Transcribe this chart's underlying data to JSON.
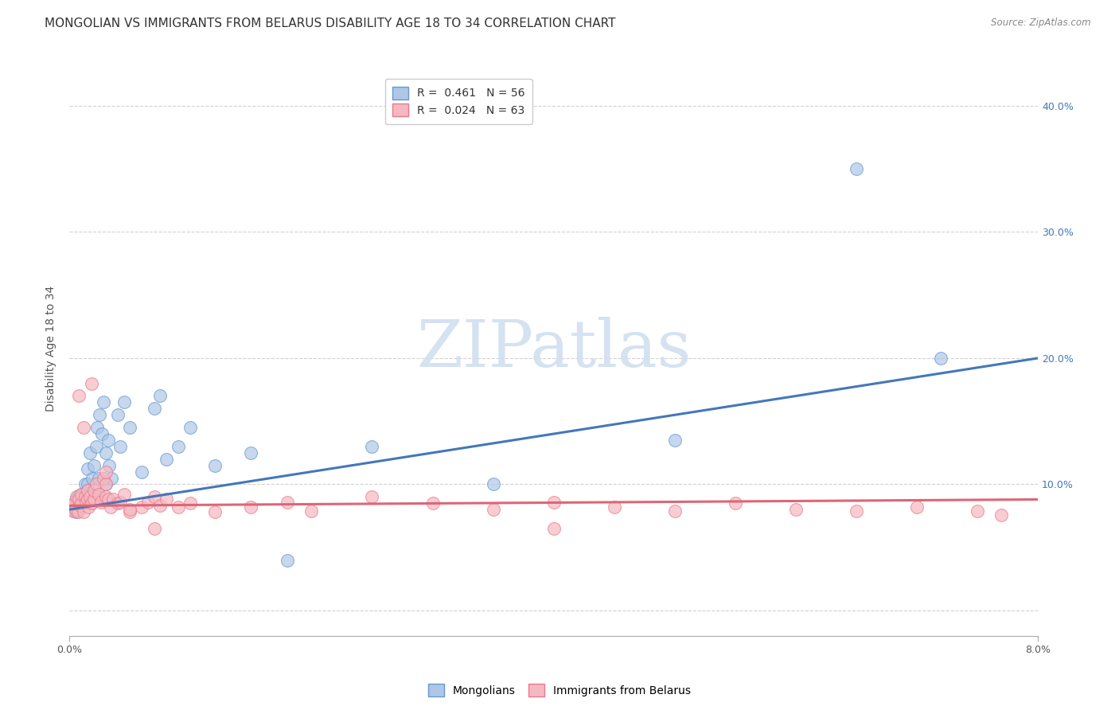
{
  "title": "MONGOLIAN VS IMMIGRANTS FROM BELARUS DISABILITY AGE 18 TO 34 CORRELATION CHART",
  "source": "Source: ZipAtlas.com",
  "ylabel": "Disability Age 18 to 34",
  "legend1_label": "R =  0.461   N = 56",
  "legend2_label": "R =  0.024   N = 63",
  "legend1_color_blue": "#aec6e8",
  "legend2_color_pink": "#f4b8c1",
  "blue_edge": "#6699cc",
  "pink_edge": "#ee7788",
  "trendline_blue": "#4477bb",
  "trendline_pink": "#dd6677",
  "watermark_text": "ZIPatlas",
  "watermark_color": "#d0dff0",
  "xlim": [
    0.0,
    0.08
  ],
  "ylim": [
    -0.02,
    0.435
  ],
  "blue_trend_y0": 0.08,
  "blue_trend_y1": 0.2,
  "pink_trend_y0": 0.083,
  "pink_trend_y1": 0.088,
  "mongolians_x": [
    0.0002,
    0.0003,
    0.0004,
    0.0005,
    0.0006,
    0.0006,
    0.0007,
    0.0007,
    0.0008,
    0.0009,
    0.001,
    0.001,
    0.0012,
    0.0013,
    0.0013,
    0.0014,
    0.0014,
    0.0015,
    0.0015,
    0.0016,
    0.0017,
    0.0017,
    0.0018,
    0.0019,
    0.002,
    0.002,
    0.0022,
    0.0023,
    0.0024,
    0.0025,
    0.0025,
    0.0027,
    0.0028,
    0.003,
    0.003,
    0.0032,
    0.0033,
    0.0035,
    0.004,
    0.0042,
    0.0045,
    0.005,
    0.006,
    0.007,
    0.0075,
    0.008,
    0.009,
    0.01,
    0.012,
    0.015,
    0.018,
    0.025,
    0.035,
    0.05,
    0.065,
    0.072
  ],
  "mongolians_y": [
    0.08,
    0.082,
    0.079,
    0.085,
    0.088,
    0.078,
    0.09,
    0.084,
    0.091,
    0.087,
    0.083,
    0.092,
    0.085,
    0.088,
    0.1,
    0.094,
    0.086,
    0.1,
    0.112,
    0.095,
    0.125,
    0.09,
    0.085,
    0.105,
    0.088,
    0.115,
    0.13,
    0.145,
    0.105,
    0.09,
    0.155,
    0.14,
    0.165,
    0.1,
    0.125,
    0.135,
    0.115,
    0.105,
    0.155,
    0.13,
    0.165,
    0.145,
    0.11,
    0.16,
    0.17,
    0.12,
    0.13,
    0.145,
    0.115,
    0.125,
    0.04,
    0.13,
    0.1,
    0.135,
    0.35,
    0.2
  ],
  "belarus_x": [
    0.0002,
    0.0003,
    0.0004,
    0.0005,
    0.0006,
    0.0007,
    0.0008,
    0.0009,
    0.001,
    0.001,
    0.0012,
    0.0013,
    0.0014,
    0.0015,
    0.0015,
    0.0016,
    0.0017,
    0.0018,
    0.002,
    0.002,
    0.0022,
    0.0024,
    0.0026,
    0.0028,
    0.003,
    0.003,
    0.0032,
    0.0034,
    0.0036,
    0.004,
    0.0042,
    0.0045,
    0.005,
    0.006,
    0.0065,
    0.007,
    0.0075,
    0.008,
    0.009,
    0.01,
    0.012,
    0.015,
    0.018,
    0.02,
    0.025,
    0.03,
    0.035,
    0.04,
    0.045,
    0.05,
    0.055,
    0.06,
    0.065,
    0.07,
    0.075,
    0.077,
    0.0008,
    0.0012,
    0.0018,
    0.003,
    0.005,
    0.007,
    0.04
  ],
  "belarus_y": [
    0.083,
    0.079,
    0.085,
    0.08,
    0.09,
    0.078,
    0.088,
    0.083,
    0.085,
    0.092,
    0.078,
    0.09,
    0.086,
    0.088,
    0.095,
    0.082,
    0.09,
    0.085,
    0.088,
    0.095,
    0.1,
    0.092,
    0.086,
    0.105,
    0.09,
    0.1,
    0.088,
    0.082,
    0.088,
    0.085,
    0.086,
    0.092,
    0.078,
    0.082,
    0.086,
    0.09,
    0.083,
    0.088,
    0.082,
    0.085,
    0.078,
    0.082,
    0.086,
    0.079,
    0.09,
    0.085,
    0.08,
    0.086,
    0.082,
    0.079,
    0.085,
    0.08,
    0.079,
    0.082,
    0.079,
    0.076,
    0.17,
    0.145,
    0.18,
    0.11,
    0.08,
    0.065,
    0.065
  ],
  "grid_color": "#cccccc",
  "background_color": "#ffffff",
  "title_fontsize": 11,
  "axis_label_fontsize": 10,
  "tick_fontsize": 9,
  "legend_fontsize": 10
}
